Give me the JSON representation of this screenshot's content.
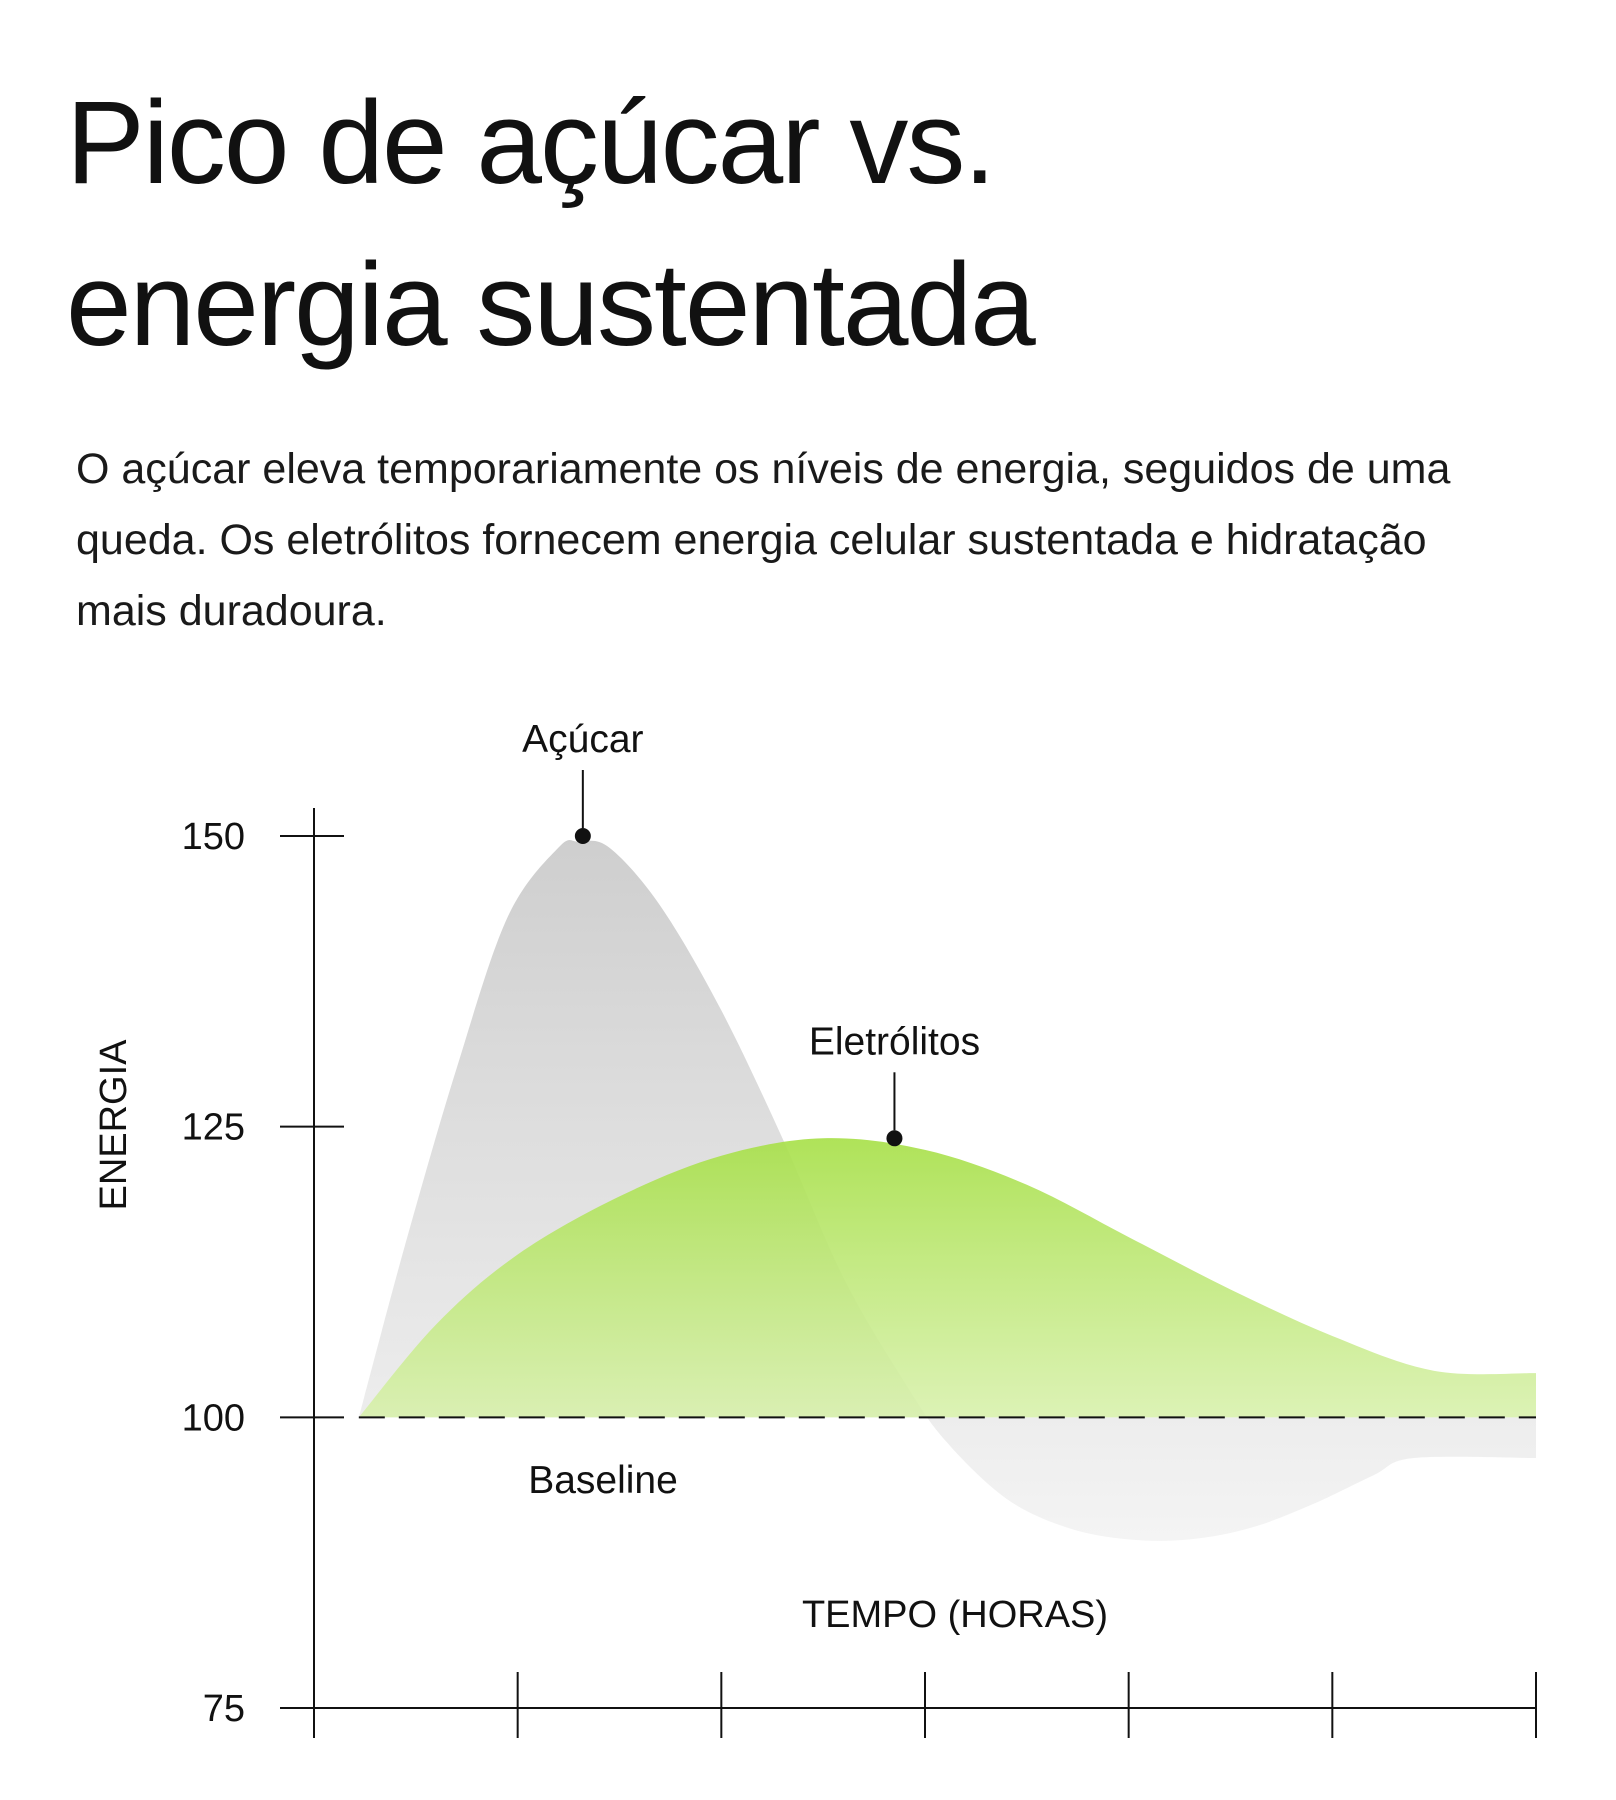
{
  "header": {
    "title_line1": "Pico de açúcar vs.",
    "title_line2": "energia sustentada",
    "subtitle": "O açúcar eleva temporariamente os níveis de energia, seguidos de uma queda. Os eletrólitos fornecem energia celular sustentada e hidratação mais duradoura."
  },
  "colors": {
    "sugar": "#d3d3d3",
    "electrolytes": "#a8e04a",
    "axis": "#111111"
  },
  "chart_data": {
    "type": "area",
    "xlabel": "TEMPO (HORAS)",
    "ylabel": "ENERGIA",
    "ylim": [
      75,
      150
    ],
    "yticks": [
      150,
      125,
      100,
      75
    ],
    "xlim": [
      0,
      6
    ],
    "x_tick_count": 7,
    "baseline": {
      "value": 100,
      "label": "Baseline"
    },
    "series": [
      {
        "name": "Açúcar",
        "points": [
          [
            0.22,
            100
          ],
          [
            0.45,
            115
          ],
          [
            0.7,
            130
          ],
          [
            0.95,
            143
          ],
          [
            1.2,
            149
          ],
          [
            1.3,
            149.5
          ],
          [
            1.45,
            149
          ],
          [
            1.7,
            144
          ],
          [
            2.0,
            135
          ],
          [
            2.3,
            124
          ],
          [
            2.6,
            112
          ],
          [
            2.9,
            103
          ],
          [
            3.1,
            98
          ],
          [
            3.4,
            93
          ],
          [
            3.7,
            90.5
          ],
          [
            4.0,
            89.5
          ],
          [
            4.3,
            89.5
          ],
          [
            4.6,
            90.5
          ],
          [
            4.9,
            92.5
          ],
          [
            5.2,
            95
          ],
          [
            5.4,
            96.5
          ],
          [
            6.0,
            96.5
          ]
        ]
      },
      {
        "name": "Eletrólitos",
        "points": [
          [
            0.22,
            100
          ],
          [
            0.6,
            108
          ],
          [
            1.0,
            114
          ],
          [
            1.5,
            119
          ],
          [
            2.0,
            122.5
          ],
          [
            2.5,
            124
          ],
          [
            3.0,
            123
          ],
          [
            3.5,
            120
          ],
          [
            4.0,
            115.5
          ],
          [
            4.5,
            111
          ],
          [
            5.0,
            107
          ],
          [
            5.5,
            104
          ],
          [
            6.0,
            103.8
          ]
        ]
      }
    ],
    "annotations": [
      {
        "text": "Açúcar",
        "x": 1.32,
        "y": 150
      },
      {
        "text": "Eletrólitos",
        "x": 2.85,
        "y": 124
      }
    ],
    "grid": false,
    "legend": "none"
  }
}
